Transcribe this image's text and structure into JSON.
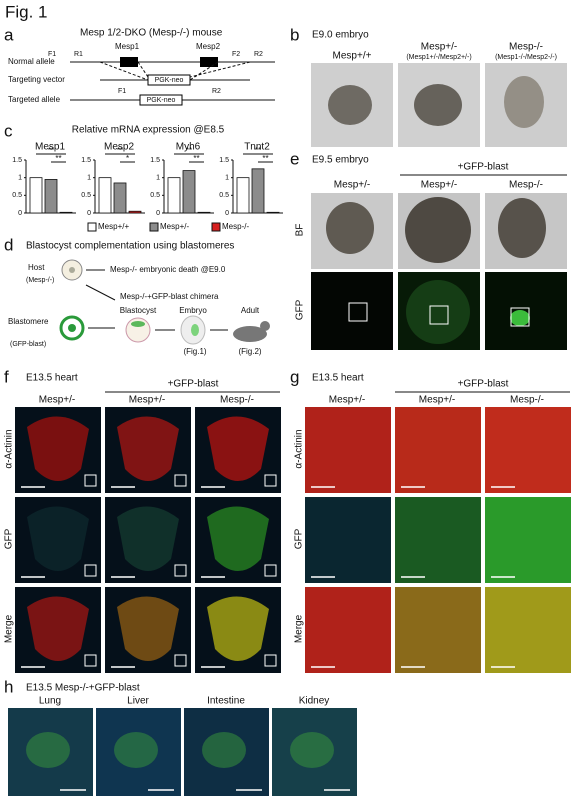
{
  "figure_label": "Fig. 1",
  "panels": {
    "a": {
      "label": "a",
      "title": "Mesp 1/2-DKO (Mesp-/-) mouse",
      "rows": [
        "Normal allele",
        "Targeting vector",
        "Targeted allele"
      ],
      "genes": [
        "Mesp1",
        "Mesp2"
      ],
      "primers_top": [
        "F1",
        "R1",
        "F2",
        "R2"
      ],
      "primers_bottom": [
        "F1",
        "R2"
      ],
      "cassette": "PGK-neo"
    },
    "b": {
      "label": "b",
      "title": "E9.0 embryo",
      "genotypes": [
        "Mesp+/+",
        "Mesp+/-",
        "Mesp-/-"
      ],
      "subtitles": [
        "(Mesp1+/-/Mesp2+/-)",
        "(Mesp1-/-/Mesp2-/-)"
      ]
    },
    "c": {
      "label": "c",
      "title": "Relative mRNA expression @E8.5",
      "chart_data": {
        "type": "bar",
        "ylim": [
          0,
          1.5
        ],
        "yticks": [
          0,
          0.5,
          1,
          1.5
        ],
        "series": [
          {
            "name": "Mesp+/+",
            "color": "#ffffff"
          },
          {
            "name": "Mesp+/-",
            "color": "#8c8c8c"
          },
          {
            "name": "Mesp-/-",
            "color": "#d61f1f"
          }
        ],
        "panels": [
          {
            "title": "Mesp1",
            "values": [
              1.0,
              0.95,
              0.02
            ],
            "significance": [
              "**",
              "**"
            ]
          },
          {
            "title": "Mesp2",
            "values": [
              1.0,
              0.85,
              0.05
            ],
            "significance": [
              "**",
              "*"
            ]
          },
          {
            "title": "Myh6",
            "values": [
              1.0,
              1.2,
              0.02
            ],
            "significance": [
              "**",
              "**"
            ]
          },
          {
            "title": "Tnnt2",
            "values": [
              1.0,
              1.25,
              0.02
            ],
            "significance": [
              "**",
              "**"
            ]
          }
        ]
      }
    },
    "d": {
      "label": "d",
      "title": "Blastocyst complementation using blastomeres",
      "host": "Host",
      "host_genotype": "(Mesp-/-)",
      "outcome": "Mesp-/- embryonic death @E9.0",
      "chimera": "Mesp-/-+GFP-blast chimera",
      "stages": [
        "Blastocyst",
        "Embryo",
        "Adult"
      ],
      "donor": "Blastomere",
      "donor_type": "(GFP-blast)",
      "refs": [
        "(Fig.1)",
        "(Fig.2)"
      ]
    },
    "e": {
      "label": "e",
      "title": "E9.5 embryo",
      "group": "+GFP-blast",
      "genotypes": [
        "Mesp+/-",
        "Mesp+/-",
        "Mesp-/-"
      ],
      "rows": [
        "BF",
        "GFP"
      ]
    },
    "f": {
      "label": "f",
      "title": "E13.5 heart",
      "group": "+GFP-blast",
      "genotypes": [
        "Mesp+/-",
        "Mesp+/-",
        "Mesp-/-"
      ],
      "rows": [
        "α-Actinin",
        "GFP",
        "Merge"
      ]
    },
    "g": {
      "label": "g",
      "title": "E13.5 heart",
      "group": "+GFP-blast",
      "genotypes": [
        "Mesp+/-",
        "Mesp+/-",
        "Mesp-/-"
      ],
      "rows": [
        "α-Actinin",
        "GFP",
        "Merge"
      ]
    },
    "h": {
      "label": "h",
      "title": "E13.5 Mesp-/-+GFP-blast",
      "tissues": [
        "Lung",
        "Liver",
        "Intestine",
        "Kidney"
      ]
    }
  }
}
